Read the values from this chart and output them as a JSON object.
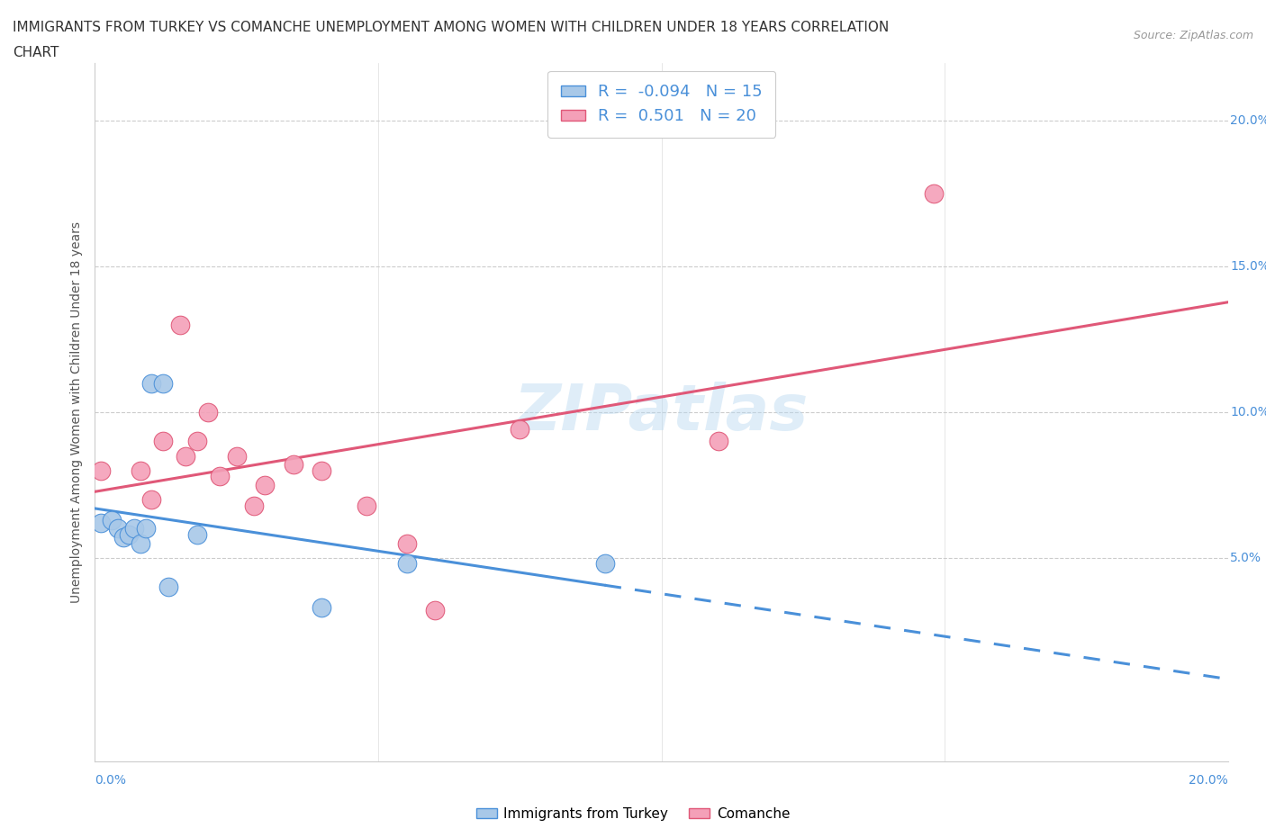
{
  "title_line1": "IMMIGRANTS FROM TURKEY VS COMANCHE UNEMPLOYMENT AMONG WOMEN WITH CHILDREN UNDER 18 YEARS CORRELATION",
  "title_line2": "CHART",
  "source": "Source: ZipAtlas.com",
  "ylabel": "Unemployment Among Women with Children Under 18 years",
  "xlim": [
    0.0,
    0.2
  ],
  "ylim": [
    -0.02,
    0.22
  ],
  "ytick_values": [
    0.05,
    0.1,
    0.15,
    0.2
  ],
  "xtick_values": [
    0.0,
    0.2
  ],
  "turkey_color": "#a8c8e8",
  "turkey_color_line": "#4a90d9",
  "comanche_color": "#f4a0b8",
  "comanche_color_line": "#e05878",
  "turkey_R": -0.094,
  "turkey_N": 15,
  "comanche_R": 0.501,
  "comanche_N": 20,
  "turkey_x": [
    0.001,
    0.003,
    0.004,
    0.005,
    0.006,
    0.007,
    0.008,
    0.009,
    0.01,
    0.012,
    0.013,
    0.018,
    0.04,
    0.055,
    0.09
  ],
  "turkey_y": [
    0.062,
    0.063,
    0.06,
    0.057,
    0.058,
    0.06,
    0.055,
    0.06,
    0.11,
    0.11,
    0.04,
    0.058,
    0.033,
    0.048,
    0.048
  ],
  "comanche_x": [
    0.001,
    0.008,
    0.01,
    0.012,
    0.015,
    0.016,
    0.018,
    0.02,
    0.022,
    0.025,
    0.028,
    0.03,
    0.035,
    0.04,
    0.048,
    0.055,
    0.06,
    0.075,
    0.11,
    0.148
  ],
  "comanche_y": [
    0.08,
    0.08,
    0.07,
    0.09,
    0.13,
    0.085,
    0.09,
    0.1,
    0.078,
    0.085,
    0.068,
    0.075,
    0.082,
    0.08,
    0.068,
    0.055,
    0.032,
    0.094,
    0.09,
    0.175
  ],
  "watermark": "ZIPatlas",
  "legend_labels": [
    "Immigrants from Turkey",
    "Comanche"
  ],
  "background_color": "#ffffff",
  "grid_color": "#cccccc"
}
